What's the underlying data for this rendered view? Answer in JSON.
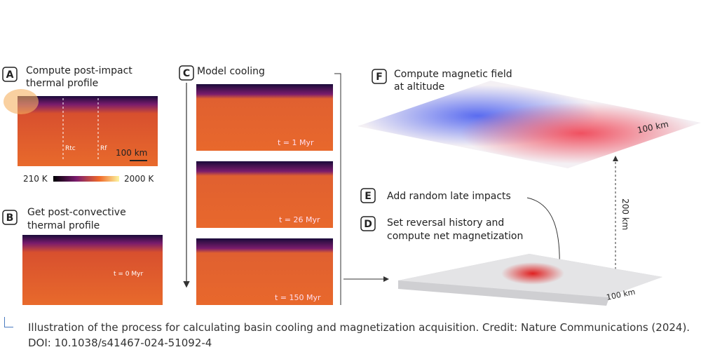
{
  "panels": [
    {
      "letter": "A",
      "title_lines": [
        "Compute post-impact",
        "thermal profile"
      ],
      "labels": [
        "Rtc",
        "Rf",
        "100 km"
      ]
    },
    {
      "letter": "B",
      "title_lines": [
        "Get post-convective",
        "thermal profile"
      ],
      "labels": [
        "t = 0 Myr"
      ]
    },
    {
      "letter": "C",
      "title_lines": [
        "Model cooling"
      ],
      "labels": [
        "t = 1 Myr",
        "t = 26 Myr",
        "t = 150 Myr"
      ]
    },
    {
      "letter": "F",
      "title_lines": [
        "Compute magnetic field",
        "at altitude"
      ],
      "labels": [
        "100 km",
        "200 km"
      ]
    },
    {
      "letter": "E",
      "title_lines": [
        "Add random late impacts"
      ]
    },
    {
      "letter": "D",
      "title_lines": [
        "Set reversal history and",
        "compute net magnetization"
      ],
      "labels": [
        "100 km"
      ]
    }
  ],
  "colorbar": {
    "min_label": "210 K",
    "max_label": "2000 K"
  },
  "caption": "Illustration of the process for calculating basin cooling and magnetization acquisition. Credit: Nature Communications (2024). DOI: 10.1038/s41467-024-51092-4"
}
